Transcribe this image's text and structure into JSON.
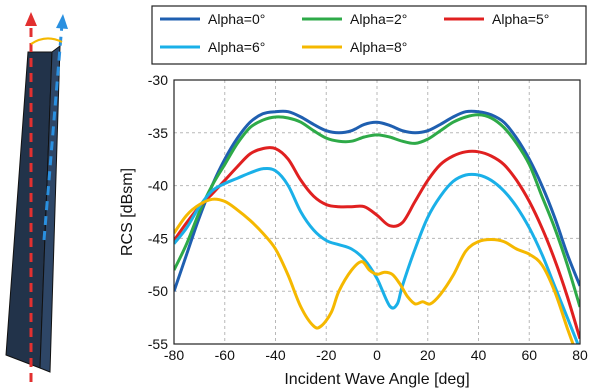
{
  "chart_data": {
    "type": "line",
    "xlabel": "Incident Wave Angle [deg]",
    "ylabel": "RCS [dBsm]",
    "xlim": [
      -80,
      80
    ],
    "ylim": [
      -55,
      -30
    ],
    "xticks": [
      -80,
      -60,
      -40,
      -20,
      0,
      20,
      40,
      60,
      80
    ],
    "yticks": [
      -55,
      -50,
      -45,
      -40,
      -35,
      -30
    ],
    "grid": true,
    "legend_position": "top",
    "series": [
      {
        "name": "Alpha=0°",
        "color": "#1f5fb0",
        "points": [
          [
            -80,
            -50
          ],
          [
            -75,
            -46.5
          ],
          [
            -70,
            -43
          ],
          [
            -65,
            -40
          ],
          [
            -60,
            -37.5
          ],
          [
            -55,
            -35.5
          ],
          [
            -50,
            -34
          ],
          [
            -45,
            -33.2
          ],
          [
            -40,
            -33
          ],
          [
            -35,
            -33
          ],
          [
            -30,
            -33.5
          ],
          [
            -25,
            -34.2
          ],
          [
            -20,
            -34.8
          ],
          [
            -15,
            -35
          ],
          [
            -10,
            -34.8
          ],
          [
            -5,
            -34.2
          ],
          [
            0,
            -34
          ],
          [
            5,
            -34.3
          ],
          [
            10,
            -34.8
          ],
          [
            15,
            -35
          ],
          [
            20,
            -34.8
          ],
          [
            25,
            -34.2
          ],
          [
            30,
            -33.5
          ],
          [
            35,
            -33
          ],
          [
            40,
            -33
          ],
          [
            45,
            -33.3
          ],
          [
            50,
            -34
          ],
          [
            55,
            -35.5
          ],
          [
            60,
            -37.5
          ],
          [
            65,
            -40
          ],
          [
            70,
            -43
          ],
          [
            75,
            -46.5
          ],
          [
            80,
            -49.5
          ]
        ]
      },
      {
        "name": "Alpha=2°",
        "color": "#2eaa48",
        "points": [
          [
            -80,
            -48
          ],
          [
            -75,
            -45.5
          ],
          [
            -70,
            -42.5
          ],
          [
            -65,
            -40
          ],
          [
            -60,
            -38
          ],
          [
            -55,
            -36
          ],
          [
            -50,
            -34.5
          ],
          [
            -45,
            -33.8
          ],
          [
            -40,
            -33.5
          ],
          [
            -35,
            -33.6
          ],
          [
            -30,
            -34
          ],
          [
            -25,
            -34.8
          ],
          [
            -20,
            -35.5
          ],
          [
            -15,
            -35.8
          ],
          [
            -10,
            -35.8
          ],
          [
            -5,
            -35.4
          ],
          [
            0,
            -35.2
          ],
          [
            5,
            -35.4
          ],
          [
            10,
            -35.8
          ],
          [
            15,
            -36
          ],
          [
            20,
            -35.6
          ],
          [
            25,
            -34.8
          ],
          [
            30,
            -34
          ],
          [
            35,
            -33.5
          ],
          [
            40,
            -33.3
          ],
          [
            45,
            -33.6
          ],
          [
            50,
            -34.5
          ],
          [
            55,
            -36
          ],
          [
            60,
            -38
          ],
          [
            65,
            -41
          ],
          [
            70,
            -44
          ],
          [
            75,
            -47.5
          ],
          [
            80,
            -51.5
          ]
        ]
      },
      {
        "name": "Alpha=5°",
        "color": "#e02020",
        "points": [
          [
            -80,
            -45.2
          ],
          [
            -75,
            -43.5
          ],
          [
            -70,
            -42
          ],
          [
            -65,
            -40.8
          ],
          [
            -60,
            -39.5
          ],
          [
            -55,
            -38.2
          ],
          [
            -50,
            -37
          ],
          [
            -45,
            -36.5
          ],
          [
            -40,
            -36.5
          ],
          [
            -35,
            -37.5
          ],
          [
            -30,
            -39.5
          ],
          [
            -25,
            -41
          ],
          [
            -20,
            -41.8
          ],
          [
            -15,
            -42
          ],
          [
            -10,
            -42
          ],
          [
            -5,
            -42
          ],
          [
            0,
            -42.8
          ],
          [
            5,
            -43.8
          ],
          [
            10,
            -43.5
          ],
          [
            15,
            -41.5
          ],
          [
            20,
            -39.5
          ],
          [
            25,
            -38
          ],
          [
            30,
            -37.2
          ],
          [
            35,
            -36.8
          ],
          [
            40,
            -36.8
          ],
          [
            45,
            -37.2
          ],
          [
            50,
            -38
          ],
          [
            55,
            -39.5
          ],
          [
            60,
            -41.5
          ],
          [
            65,
            -44
          ],
          [
            70,
            -47
          ],
          [
            75,
            -50.5
          ],
          [
            80,
            -54.5
          ]
        ]
      },
      {
        "name": "Alpha=6°",
        "color": "#1ab0e8",
        "points": [
          [
            -80,
            -45.5
          ],
          [
            -75,
            -44
          ],
          [
            -70,
            -42
          ],
          [
            -65,
            -40.5
          ],
          [
            -60,
            -39.8
          ],
          [
            -55,
            -39.3
          ],
          [
            -50,
            -38.8
          ],
          [
            -45,
            -38.4
          ],
          [
            -40,
            -38.6
          ],
          [
            -35,
            -40
          ],
          [
            -30,
            -42.5
          ],
          [
            -25,
            -44.2
          ],
          [
            -20,
            -45.2
          ],
          [
            -15,
            -45.6
          ],
          [
            -10,
            -46
          ],
          [
            -5,
            -47
          ],
          [
            0,
            -48.8
          ],
          [
            5,
            -51.4
          ],
          [
            8,
            -51.2
          ],
          [
            10,
            -49.5
          ],
          [
            15,
            -46
          ],
          [
            20,
            -43
          ],
          [
            25,
            -41
          ],
          [
            30,
            -39.6
          ],
          [
            35,
            -39
          ],
          [
            40,
            -39
          ],
          [
            45,
            -39.5
          ],
          [
            50,
            -40.5
          ],
          [
            55,
            -42
          ],
          [
            60,
            -44
          ],
          [
            65,
            -46.5
          ],
          [
            70,
            -49.5
          ],
          [
            75,
            -52.5
          ],
          [
            80,
            -55.5
          ]
        ]
      },
      {
        "name": "Alpha=8°",
        "color": "#f5b800",
        "points": [
          [
            -80,
            -44.5
          ],
          [
            -75,
            -42.8
          ],
          [
            -70,
            -41.8
          ],
          [
            -65,
            -41.3
          ],
          [
            -60,
            -41.5
          ],
          [
            -55,
            -42.3
          ],
          [
            -50,
            -43.3
          ],
          [
            -45,
            -44.5
          ],
          [
            -40,
            -46
          ],
          [
            -35,
            -48.5
          ],
          [
            -30,
            -51.5
          ],
          [
            -25,
            -53.3
          ],
          [
            -22,
            -53.3
          ],
          [
            -18,
            -52
          ],
          [
            -15,
            -50
          ],
          [
            -10,
            -48
          ],
          [
            -6,
            -47.2
          ],
          [
            -3,
            -48
          ],
          [
            0,
            -48.4
          ],
          [
            3,
            -48.2
          ],
          [
            6,
            -48.4
          ],
          [
            9,
            -49.3
          ],
          [
            12,
            -50.5
          ],
          [
            15,
            -51.2
          ],
          [
            18,
            -51
          ],
          [
            21,
            -51.2
          ],
          [
            25,
            -50.3
          ],
          [
            30,
            -48.5
          ],
          [
            35,
            -46.2
          ],
          [
            40,
            -45.3
          ],
          [
            45,
            -45.1
          ],
          [
            50,
            -45.3
          ],
          [
            55,
            -46
          ],
          [
            60,
            -46.5
          ],
          [
            65,
            -47.5
          ],
          [
            70,
            -50
          ],
          [
            75,
            -53.5
          ],
          [
            78,
            -55.5
          ]
        ]
      }
    ]
  }
}
